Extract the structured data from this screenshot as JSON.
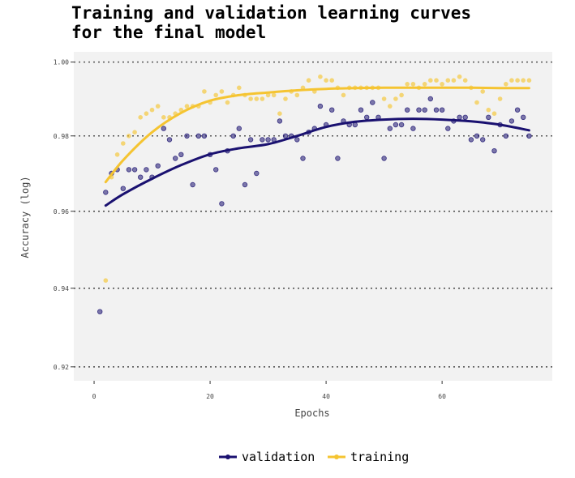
{
  "chart_data": {
    "type": "scatter",
    "title": "Training and validation learning curves\nfor the final model",
    "xlabel": "Epochs",
    "ylabel": "Accuracy (log)",
    "xlim": [
      -3.5,
      79
    ],
    "ylim": [
      0.9165,
      1.0028
    ],
    "y_scale": "log",
    "grid": "horizontal dotted",
    "x_ticks": [
      0,
      20,
      40,
      60
    ],
    "x_tick_labels": [
      "0",
      "20",
      "40",
      "60"
    ],
    "y_ticks": [
      0.92,
      0.94,
      0.96,
      0.98,
      1.0
    ],
    "y_tick_labels": [
      "0.92",
      "0.94",
      "0.96",
      "0.98",
      "1.00"
    ],
    "legend_position": "bottom",
    "series": [
      {
        "name": "validation",
        "color": "#1a1170",
        "x": [
          1,
          2,
          3,
          4,
          5,
          6,
          7,
          8,
          9,
          10,
          11,
          12,
          13,
          14,
          15,
          16,
          17,
          18,
          19,
          20,
          21,
          22,
          23,
          24,
          25,
          26,
          27,
          28,
          29,
          30,
          31,
          32,
          33,
          34,
          35,
          36,
          37,
          38,
          39,
          40,
          41,
          42,
          43,
          44,
          45,
          46,
          47,
          48,
          49,
          50,
          51,
          52,
          53,
          54,
          55,
          56,
          57,
          58,
          59,
          60,
          61,
          62,
          63,
          64,
          65,
          66,
          67,
          68,
          69,
          70,
          71,
          72,
          73,
          74,
          75
        ],
        "y": [
          0.934,
          0.965,
          0.97,
          0.971,
          0.966,
          0.971,
          0.971,
          0.969,
          0.971,
          0.969,
          0.972,
          0.982,
          0.979,
          0.974,
          0.975,
          0.98,
          0.967,
          0.98,
          0.98,
          0.975,
          0.971,
          0.962,
          0.976,
          0.98,
          0.982,
          0.967,
          0.979,
          0.97,
          0.979,
          0.979,
          0.979,
          0.984,
          0.98,
          0.98,
          0.979,
          0.974,
          0.981,
          0.982,
          0.988,
          0.983,
          0.987,
          0.974,
          0.984,
          0.983,
          0.983,
          0.987,
          0.985,
          0.989,
          0.985,
          0.974,
          0.982,
          0.983,
          0.983,
          0.987,
          0.982,
          0.987,
          0.987,
          0.99,
          0.987,
          0.987,
          0.982,
          0.984,
          0.985,
          0.985,
          0.979,
          0.98,
          0.979,
          0.985,
          0.976,
          0.983,
          0.98,
          0.984,
          0.987,
          0.985,
          0.98
        ],
        "trend_x": [
          2,
          5,
          10,
          15,
          20,
          25,
          30,
          35,
          40,
          45,
          50,
          55,
          60,
          65,
          70,
          75
        ],
        "trend_y": [
          0.9615,
          0.9645,
          0.9686,
          0.9722,
          0.9751,
          0.9767,
          0.9778,
          0.98,
          0.9824,
          0.9838,
          0.9844,
          0.9846,
          0.9844,
          0.9839,
          0.983,
          0.9815
        ]
      },
      {
        "name": "training",
        "color": "#f5c431",
        "x": [
          2,
          3,
          4,
          5,
          6,
          7,
          8,
          9,
          10,
          11,
          12,
          13,
          14,
          15,
          16,
          17,
          18,
          19,
          20,
          21,
          22,
          23,
          24,
          25,
          26,
          27,
          28,
          29,
          30,
          31,
          32,
          33,
          34,
          35,
          36,
          37,
          38,
          39,
          40,
          41,
          42,
          43,
          44,
          45,
          46,
          47,
          48,
          49,
          50,
          51,
          52,
          53,
          54,
          55,
          56,
          57,
          58,
          59,
          60,
          61,
          62,
          63,
          64,
          65,
          66,
          67,
          68,
          69,
          70,
          71,
          72,
          73,
          74,
          75
        ],
        "y": [
          0.942,
          0.969,
          0.975,
          0.978,
          0.98,
          0.981,
          0.985,
          0.986,
          0.987,
          0.988,
          0.985,
          0.985,
          0.986,
          0.987,
          0.988,
          0.988,
          0.988,
          0.992,
          0.989,
          0.991,
          0.992,
          0.989,
          0.991,
          0.993,
          0.991,
          0.99,
          0.99,
          0.99,
          0.991,
          0.991,
          0.986,
          0.99,
          0.992,
          0.991,
          0.993,
          0.995,
          0.992,
          0.996,
          0.995,
          0.995,
          0.993,
          0.991,
          0.993,
          0.993,
          0.993,
          0.993,
          0.993,
          0.993,
          0.99,
          0.988,
          0.99,
          0.991,
          0.994,
          0.994,
          0.993,
          0.994,
          0.995,
          0.995,
          0.994,
          0.995,
          0.995,
          0.996,
          0.995,
          0.993,
          0.989,
          0.992,
          0.987,
          0.986,
          0.99,
          0.994,
          0.995,
          0.995,
          0.995,
          0.995
        ],
        "trend_x": [
          2,
          5,
          10,
          15,
          20,
          25,
          30,
          35,
          40,
          45,
          50,
          55,
          60,
          65,
          70,
          75
        ],
        "trend_y": [
          0.9677,
          0.9735,
          0.981,
          0.9862,
          0.9895,
          0.991,
          0.9917,
          0.9923,
          0.9927,
          0.9929,
          0.993,
          0.993,
          0.993,
          0.993,
          0.9929,
          0.9929
        ]
      }
    ]
  }
}
